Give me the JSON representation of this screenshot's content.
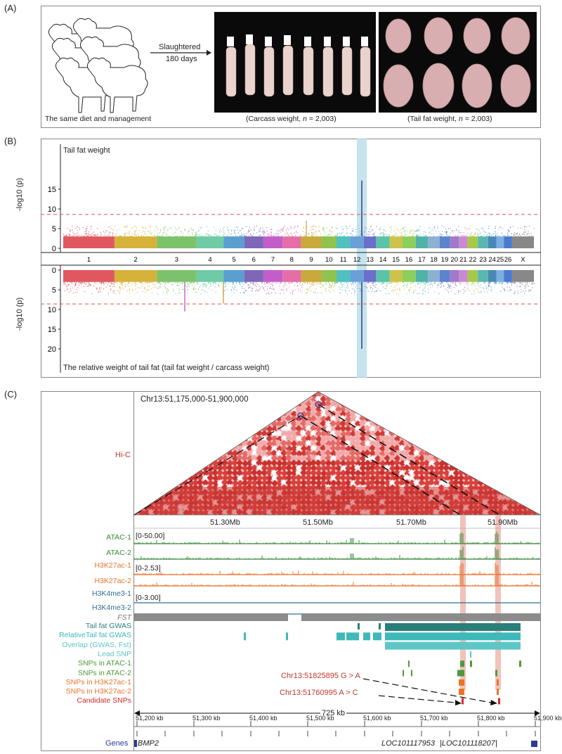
{
  "panelA": {
    "label": "(A)",
    "sheep_caption": "The same diet and management",
    "arrow_top": "Slaughtered",
    "arrow_bottom": "180 days",
    "carcass_caption_pre": "(Carcass weight, ",
    "carcass_caption_n": "n",
    "carcass_caption_post": " = 2,003)",
    "tail_caption_pre": "(Tail fat weight, ",
    "tail_caption_n": "n",
    "tail_caption_post": " = 2,003)"
  },
  "panelB": {
    "label": "(B)",
    "top_title": "Tail fat weight",
    "bottom_title": "The relative weight of tail fat (tail fat weight / carcass weight)",
    "ylabel": "-log10 (p)",
    "top_ticks": [
      "15",
      "10",
      "5",
      "0"
    ],
    "bottom_ticks": [
      "0",
      "5",
      "10",
      "15",
      "20"
    ],
    "chromosomes": [
      "1",
      "2",
      "3",
      "4",
      "5",
      "6",
      "7",
      "8",
      "9",
      "10",
      "11",
      "12",
      "13",
      "14",
      "15",
      "16",
      "17",
      "18",
      "19",
      "20",
      "21",
      "22",
      "23",
      "24",
      "25",
      "26",
      "X"
    ]
  },
  "panelC": {
    "label": "(C)",
    "region": "Chr13:51,175,000-51,900,000",
    "hic_label": "Hi-C",
    "mb_ticks": [
      "51.30Mb",
      "51.50Mb",
      "51.70Mb",
      "51.90Mb"
    ],
    "tracks": [
      {
        "name": "ATAC-1",
        "color": "#3a8a3a",
        "range": "[0-50.00]"
      },
      {
        "name": "ATAC-2",
        "color": "#3a8a3a",
        "range": ""
      },
      {
        "name": "H3K27ac-1",
        "color": "#e8742a",
        "range": "[0-2.53]"
      },
      {
        "name": "H3K27ac-2",
        "color": "#e8742a",
        "range": ""
      },
      {
        "name": "H3K4me3-1",
        "color": "#2f6f96",
        "range": "[0-3.00]"
      },
      {
        "name": "H3K4me3-2",
        "color": "#2f6f96",
        "range": ""
      }
    ],
    "fst_label": "FST",
    "lower_tracks": [
      {
        "name": "Tail fat GWAS",
        "color": "#2a7f7a"
      },
      {
        "name": "RelativeTail fat GWAS",
        "color": "#3fb8b8"
      },
      {
        "name": "Overlap (GWAS, Fst)",
        "color": "#5ec6c6"
      },
      {
        "name": "Lead SNP",
        "color": "#5ec6c6"
      },
      {
        "name": "SNPs in ATAC-1",
        "color": "#4e9a3a"
      },
      {
        "name": "SNPs in ATAC-2",
        "color": "#4e9a3a"
      },
      {
        "name": "SNPs in H3K27ac-1",
        "color": "#e8742a"
      },
      {
        "name": "SNPs in H3K27ac-2",
        "color": "#e8742a"
      },
      {
        "name": "Candidate SNPs",
        "color": "#d42a2a"
      }
    ],
    "snp1": "Chr13:51825895 G > A",
    "snp2": "Chr13:51760995 A > C",
    "span": "725 kb",
    "kb_ticks": [
      "51,200 kb",
      "51,300 kb",
      "51,400 kb",
      "51,500 kb",
      "51,600 kb",
      "51,700 kb",
      "51,800 kb",
      "51,900 kb"
    ],
    "genes_label": "Genes",
    "gene1": "BMP2",
    "gene2": "LOC101117953",
    "gene3": "LOC101118207"
  }
}
